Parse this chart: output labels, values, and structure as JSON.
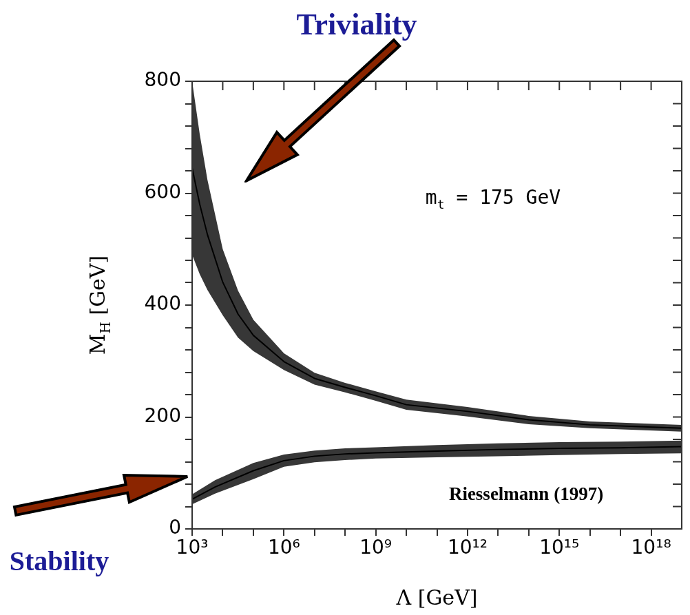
{
  "chart_data": {
    "type": "line",
    "xlabel": "Λ [GeV]",
    "ylabel": "M$_{H}$ [GeV]",
    "annotations": [
      "Triviality",
      "Stability",
      "m$_{t}$ = 175 GeV",
      "Riesselmann (1997)"
    ],
    "log": "x",
    "xlim": [
      1000,
      1e+19
    ],
    "ylim": [
      0,
      800
    ],
    "xticks": [
      {
        "value": 1000,
        "label": "10³"
      },
      {
        "value": 10000.0,
        "label": null
      },
      {
        "value": 100000.0,
        "label": null
      },
      {
        "value": 1000000.0,
        "label": "10⁶"
      },
      {
        "value": 10000000.0,
        "label": null
      },
      {
        "value": 100000000.0,
        "label": null
      },
      {
        "value": 1000000000.0,
        "label": "10⁹"
      },
      {
        "value": 10000000000.0,
        "label": null
      },
      {
        "value": 100000000000.0,
        "label": null
      },
      {
        "value": 1000000000000.0,
        "label": "10¹²"
      },
      {
        "value": 10000000000000.0,
        "label": null
      },
      {
        "value": 100000000000000.0,
        "label": null
      },
      {
        "value": 1000000000000000.0,
        "label": "10¹⁵"
      },
      {
        "value": 1e+16,
        "label": null
      },
      {
        "value": 1e+17,
        "label": null
      },
      {
        "value": 1e+18,
        "label": "10¹⁸"
      }
    ],
    "yticks": [
      0,
      {
        "value": 40,
        "label": null
      },
      {
        "value": 80,
        "label": null
      },
      {
        "value": 120,
        "label": null
      },
      {
        "value": 160,
        "label": null
      },
      200,
      {
        "value": 240,
        "label": null
      },
      {
        "value": 280,
        "label": null
      },
      {
        "value": 320,
        "label": null
      },
      {
        "value": 360,
        "label": null
      },
      400,
      {
        "value": 440,
        "label": null
      },
      {
        "value": 480,
        "label": null
      },
      {
        "value": 520,
        "label": null
      },
      {
        "value": 560,
        "label": null
      },
      600,
      {
        "value": 640,
        "label": null
      },
      {
        "value": 680,
        "label": null
      },
      {
        "value": 720,
        "label": null
      },
      {
        "value": 760,
        "label": null
      },
      800
    ],
    "series": [
      {
        "color": "#000000",
        "x": [
          1000,
          1778,
          3162,
          10000,
          31623,
          100000,
          1000000.0,
          10000000.0,
          100000000.0,
          1000000000.0,
          10000000000.0,
          1000000000000.0,
          100000000000000.0,
          1e+16,
          1e+19
        ],
        "values": [
          645,
          580,
          526,
          441,
          384,
          346,
          299,
          269,
          253,
          238,
          222,
          210,
          195,
          186,
          180
        ],
        "lower": [
          490,
          455,
          427,
          382,
          342,
          318,
          284,
          258,
          244,
          229,
          213,
          201,
          187,
          180,
          174
        ],
        "upper": [
          800,
          705,
          624,
          500,
          426,
          374,
          314,
          279,
          261,
          246,
          231,
          218,
          202,
          192,
          186
        ]
      },
      {
        "color": "#000000",
        "x": [
          1000,
          5623,
          100000,
          1000000.0,
          10000000.0,
          100000000.0,
          1000000000.0,
          100000000000.0,
          10000000000000.0,
          1000000000000000.0,
          1e+17,
          1e+19
        ],
        "values": [
          53,
          75,
          104,
          122,
          130,
          134,
          136,
          139,
          142,
          144,
          145,
          147
        ],
        "lower": [
          44,
          63,
          89,
          111,
          119,
          123,
          126,
          128,
          130,
          132,
          134,
          135
        ],
        "upper": [
          62,
          87,
          118,
          133,
          140,
          144,
          146,
          150,
          153,
          155,
          156,
          158
        ]
      }
    ]
  }
}
